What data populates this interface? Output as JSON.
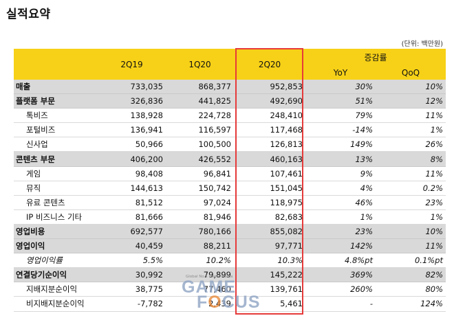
{
  "title": "실적요약",
  "unit": "(단위: 백만원)",
  "header": {
    "periods": [
      "2Q19",
      "1Q20",
      "2Q20"
    ],
    "change_group": "증감률",
    "change_cols": [
      "YoY",
      "QoQ"
    ]
  },
  "rows": [
    {
      "label": "매출",
      "values": [
        "733,035",
        "868,377",
        "952,853"
      ],
      "yoy": "30%",
      "qoq": "10%"
    },
    {
      "label": "플랫폼 부문",
      "values": [
        "326,836",
        "441,825",
        "492,690"
      ],
      "yoy": "51%",
      "qoq": "12%"
    },
    {
      "label": "톡비즈",
      "values": [
        "138,928",
        "224,728",
        "248,410"
      ],
      "yoy": "79%",
      "qoq": "11%"
    },
    {
      "label": "포털비즈",
      "values": [
        "136,941",
        "116,597",
        "117,468"
      ],
      "yoy": "-14%",
      "qoq": "1%"
    },
    {
      "label": "신사업",
      "values": [
        "50,966",
        "100,500",
        "126,813"
      ],
      "yoy": "149%",
      "qoq": "26%"
    },
    {
      "label": "콘텐츠 부문",
      "values": [
        "406,200",
        "426,552",
        "460,163"
      ],
      "yoy": "13%",
      "qoq": "8%"
    },
    {
      "label": "게임",
      "values": [
        "98,408",
        "96,841",
        "107,461"
      ],
      "yoy": "9%",
      "qoq": "11%"
    },
    {
      "label": "뮤직",
      "values": [
        "144,613",
        "150,742",
        "151,045"
      ],
      "yoy": "4%",
      "qoq": "0.2%"
    },
    {
      "label": "유료 콘텐츠",
      "values": [
        "81,512",
        "97,024",
        "118,975"
      ],
      "yoy": "46%",
      "qoq": "23%"
    },
    {
      "label": "IP 비즈니스 기타",
      "values": [
        "81,666",
        "81,946",
        "82,683"
      ],
      "yoy": "1%",
      "qoq": "1%"
    },
    {
      "label": "영업비용",
      "values": [
        "692,577",
        "780,166",
        "855,082"
      ],
      "yoy": "23%",
      "qoq": "10%"
    },
    {
      "label": "영업이익",
      "values": [
        "40,459",
        "88,211",
        "97,771"
      ],
      "yoy": "142%",
      "qoq": "11%"
    },
    {
      "label": "영업이익률",
      "values": [
        "5.5%",
        "10.2%",
        "10.3%"
      ],
      "yoy": "4.8%pt",
      "qoq": "0.1%pt"
    },
    {
      "label": "연결당기순이익",
      "values": [
        "30,992",
        "79,899",
        "145,222"
      ],
      "yoy": "369%",
      "qoq": "82%"
    },
    {
      "label": "지배지분순이익",
      "values": [
        "38,775",
        "77,460",
        "139,761"
      ],
      "yoy": "260%",
      "qoq": "80%"
    },
    {
      "label": "비지배지분순이익",
      "values": [
        "-7,782",
        "2,439",
        "5,461"
      ],
      "yoy": "-",
      "qoq": "124%"
    }
  ],
  "watermark": {
    "tagline": "Global No.1 Game Media",
    "word1": "GAME",
    "word2_a": "F",
    "word2_o": "O",
    "word2_b": "CUS"
  },
  "colors": {
    "header_bg": "#f7d117",
    "major_row_bg": "#d9d9d9",
    "highlight_border": "#e63a3a"
  }
}
